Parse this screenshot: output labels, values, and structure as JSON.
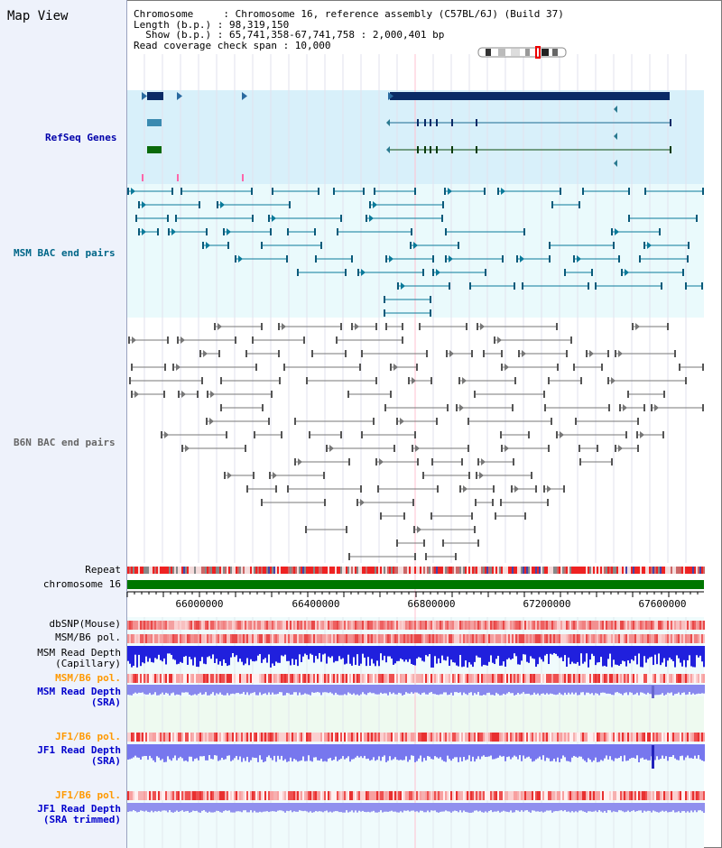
{
  "title": "Map View",
  "info": {
    "line1": "Chromosome     : Chromosome 16, reference assembly (C57BL/6J) (Build 37)",
    "line2": "Length (b.p.) : 98,319,150",
    "line3": "  Show (b.p.) : 65,741,358-67,741,758 : 2,000,401 bp",
    "line4": "Read coverage check span : 10,000"
  },
  "tracks": {
    "refseq": "RefSeq Genes",
    "msm_bac": "MSM BAC end pairs",
    "b6n_bac": "B6N BAC end pairs",
    "repeat": "Repeat",
    "chromosome": "chromosome 16",
    "dbsnp": "dbSNP(Mouse)",
    "msm_b6_pol1": "MSM/B6 pol.",
    "msm_depth_cap_1": "MSM Read Depth",
    "msm_depth_cap_2": "(Capillary)",
    "msm_b6_pol2": "MSM/B6 pol.",
    "msm_depth_sra_1": "MSM Read Depth",
    "msm_depth_sra_2": "(SRA)",
    "jf1_pol1": "JF1/B6 pol.",
    "jf1_depth_1": "JF1 Read Depth",
    "jf1_depth_2": "(SRA)",
    "jf1_pol2": "JF1/B6 pol.",
    "jf1_trim_1": "JF1 Read Depth",
    "jf1_trim_2": "(SRA trimmed)"
  },
  "axis": {
    "ticks": [
      "66000000",
      "66400000",
      "66800000",
      "67200000",
      "67600000"
    ]
  },
  "colors": {
    "refseq_label": "#0000aa",
    "msm_label": "#006688",
    "b6n_label": "#555555",
    "pol_orange": "#ff9900",
    "depth_blue": "#0000cc",
    "chrom_green": "#007700"
  }
}
